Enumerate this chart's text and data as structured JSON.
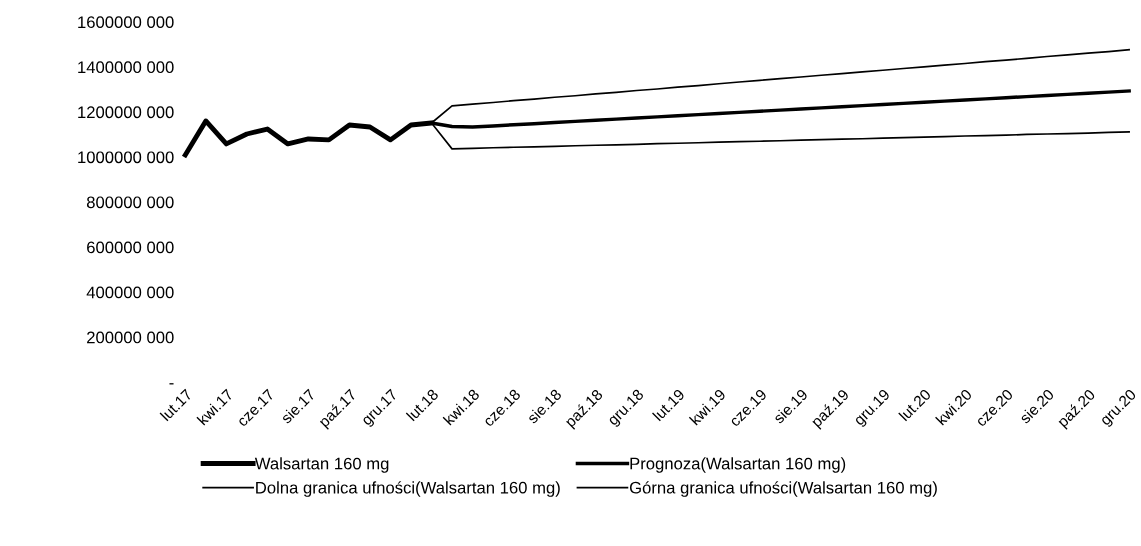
{
  "chart_data": {
    "type": "line",
    "categories": [
      "lut.17",
      null,
      "kwi.17",
      null,
      "cze.17",
      null,
      "sie.17",
      null,
      "paź.17",
      null,
      "gru.17",
      null,
      "lut.18",
      null,
      "kwi.18",
      null,
      "cze.18",
      null,
      "sie.18",
      null,
      "paź.18",
      null,
      "gru.18",
      null,
      "lut.19",
      null,
      "kwi.19",
      null,
      "cze.19",
      null,
      "sie.19",
      null,
      "paź.19",
      null,
      "gru.19",
      null,
      "lut.20",
      null,
      "kwi.20",
      null,
      "cze.20",
      null,
      "sie.20",
      null,
      "paź.20",
      null,
      "gru.20"
    ],
    "series": [
      {
        "name": "Walsartan 160 mg",
        "color": "#000000",
        "values": [
          1009000000,
          1160000000,
          1058000000,
          1102000000,
          1124000000,
          1058000000,
          1080000000,
          1076000000,
          1142000000,
          1133000000,
          1076000000,
          1142000000,
          1151000000,
          null,
          null,
          null,
          null,
          null,
          null,
          null,
          null,
          null,
          null,
          null,
          null,
          null,
          null,
          null,
          null,
          null,
          null,
          null,
          null,
          null,
          null,
          null,
          null,
          null,
          null,
          null,
          null,
          null,
          null,
          null,
          null,
          null,
          null
        ]
      },
      {
        "name": "Prognoza(Walsartan 160 mg)",
        "color": "#000000",
        "values": [
          null,
          null,
          null,
          null,
          null,
          null,
          null,
          null,
          null,
          null,
          null,
          null,
          1151000000,
          1135000000,
          1133000000,
          1138000000,
          1143000000,
          1148000000,
          1153000000,
          1158000000,
          1163000000,
          1168000000,
          1173000000,
          1178000000,
          1183000000,
          1188000000,
          1193000000,
          1198000000,
          1203000000,
          1208000000,
          1213000000,
          1218000000,
          1223000000,
          1228000000,
          1233000000,
          1238000000,
          1243000000,
          1248000000,
          1253000000,
          1258000000,
          1263000000,
          1268000000,
          1273000000,
          1278000000,
          1283000000,
          1288000000,
          1293000000
        ]
      },
      {
        "name": "Dolna granica ufności(Walsartan 160 mg)",
        "color": "#000000",
        "values": [
          null,
          null,
          null,
          null,
          null,
          null,
          null,
          null,
          null,
          null,
          null,
          null,
          1151000000,
          1036000000,
          1038000000,
          1041000000,
          1043000000,
          1045000000,
          1047000000,
          1050000000,
          1052000000,
          1054000000,
          1056000000,
          1059000000,
          1061000000,
          1063000000,
          1066000000,
          1068000000,
          1070000000,
          1072000000,
          1075000000,
          1077000000,
          1079000000,
          1081000000,
          1084000000,
          1086000000,
          1088000000,
          1090000000,
          1093000000,
          1095000000,
          1097000000,
          1100000000,
          1102000000,
          1104000000,
          1106000000,
          1109000000,
          1111000000
        ]
      },
      {
        "name": "Górna granica ufności(Walsartan 160 mg)",
        "color": "#000000",
        "values": [
          null,
          null,
          null,
          null,
          null,
          null,
          null,
          null,
          null,
          null,
          null,
          null,
          1151000000,
          1227000000,
          1235000000,
          1242000000,
          1250000000,
          1257000000,
          1265000000,
          1272000000,
          1280000000,
          1287000000,
          1295000000,
          1302000000,
          1310000000,
          1317000000,
          1325000000,
          1333000000,
          1340000000,
          1348000000,
          1355000000,
          1363000000,
          1370000000,
          1378000000,
          1385000000,
          1393000000,
          1400000000,
          1408000000,
          1415000000,
          1423000000,
          1430000000,
          1438000000,
          1446000000,
          1453000000,
          1461000000,
          1468000000,
          1476000000
        ]
      }
    ],
    "ylim": [
      0,
      1600000000
    ],
    "yticks": [
      {
        "value": 0,
        "label": "-"
      },
      {
        "value": 200000000,
        "label": "200000 000"
      },
      {
        "value": 400000000,
        "label": "400000 000"
      },
      {
        "value": 600000000,
        "label": "600000 000"
      },
      {
        "value": 800000000,
        "label": "800000 000"
      },
      {
        "value": 1000000000,
        "label": "1000000 000"
      },
      {
        "value": 1200000000,
        "label": "1200000 000"
      },
      {
        "value": 1400000000,
        "label": "1400000 000"
      },
      {
        "value": 1600000000,
        "label": "1600000 000"
      }
    ],
    "legend": "bottom",
    "marker": "none",
    "line_style": "solid"
  }
}
